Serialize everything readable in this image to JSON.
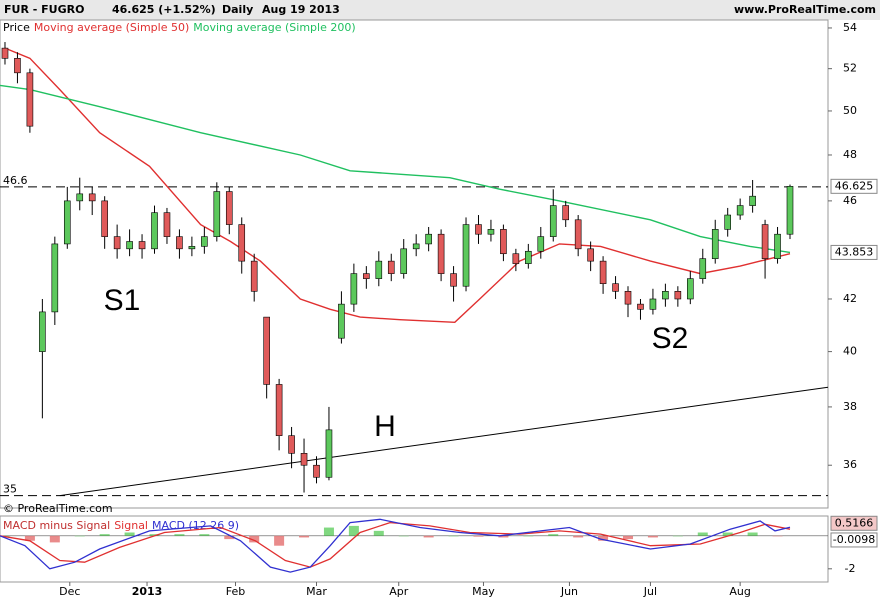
{
  "header": {
    "symbol": "FUR - FUGRO",
    "quote": "46.625 (+1.52%)",
    "period": "Daily",
    "date": "Aug 19 2013",
    "site": "www.ProRealTime.com"
  },
  "chart_data": [
    {
      "type": "candlestick",
      "legend_prefix": "Price",
      "copyright": "© ProRealTime.com",
      "up_color": "#5cc85c",
      "down_color": "#e05a5a",
      "log_scale": true,
      "xlim": [
        -0.4,
        66.05
      ],
      "ylim": [
        34.6,
        54.4
      ],
      "yticks": [
        36,
        38,
        40,
        42,
        46,
        48,
        50,
        52,
        54
      ],
      "xticks": [
        {
          "value": 5.2,
          "label": "Dec"
        },
        {
          "value": 11.4,
          "label": "2013"
        },
        {
          "value": 18.5,
          "label": "Feb"
        },
        {
          "value": 25.0,
          "label": "Mar"
        },
        {
          "value": 31.6,
          "label": "Apr"
        },
        {
          "value": 38.4,
          "label": "May"
        },
        {
          "value": 45.3,
          "label": "Jun"
        },
        {
          "value": 51.8,
          "label": "Jul"
        },
        {
          "value": 59.0,
          "label": "Aug"
        }
      ],
      "candles": [
        [
          53.0,
          53.3,
          52.2,
          52.5
        ],
        [
          52.5,
          52.8,
          51.3,
          51.8
        ],
        [
          51.8,
          52.0,
          49.0,
          49.3
        ],
        [
          40.0,
          42.0,
          37.6,
          41.5
        ],
        [
          41.5,
          44.5,
          41.0,
          44.2
        ],
        [
          44.2,
          46.6,
          44.0,
          46.0
        ],
        [
          46.0,
          47.0,
          45.6,
          46.3
        ],
        [
          46.3,
          46.6,
          45.4,
          46.0
        ],
        [
          46.0,
          46.2,
          44.0,
          44.5
        ],
        [
          44.5,
          45.0,
          43.6,
          44.0
        ],
        [
          44.0,
          44.8,
          43.7,
          44.3
        ],
        [
          44.3,
          44.6,
          43.6,
          44.0
        ],
        [
          44.0,
          45.8,
          43.8,
          45.5
        ],
        [
          45.5,
          45.7,
          44.2,
          44.5
        ],
        [
          44.5,
          44.8,
          43.6,
          44.0
        ],
        [
          44.0,
          44.5,
          43.7,
          44.1
        ],
        [
          44.1,
          44.9,
          43.8,
          44.5
        ],
        [
          44.5,
          46.8,
          44.3,
          46.4
        ],
        [
          46.4,
          46.6,
          44.6,
          45.0
        ],
        [
          45.0,
          45.3,
          43.0,
          43.5
        ],
        [
          43.5,
          43.8,
          41.9,
          42.3
        ],
        [
          41.3,
          41.3,
          38.3,
          38.8
        ],
        [
          38.8,
          39.0,
          36.5,
          37.0
        ],
        [
          37.0,
          37.3,
          35.9,
          36.4
        ],
        [
          36.4,
          36.9,
          35.1,
          36.0
        ],
        [
          36.0,
          36.3,
          35.4,
          35.6
        ],
        [
          35.6,
          38.0,
          35.5,
          37.2
        ],
        [
          40.5,
          42.3,
          40.3,
          41.8
        ],
        [
          41.8,
          43.4,
          41.5,
          43.0
        ],
        [
          43.0,
          43.3,
          42.4,
          42.8
        ],
        [
          42.8,
          43.9,
          42.5,
          43.5
        ],
        [
          43.5,
          43.8,
          42.7,
          43.0
        ],
        [
          43.0,
          44.4,
          42.8,
          44.0
        ],
        [
          44.0,
          44.6,
          43.7,
          44.2
        ],
        [
          44.2,
          44.9,
          43.9,
          44.6
        ],
        [
          44.6,
          44.8,
          42.7,
          43.0
        ],
        [
          43.0,
          43.3,
          41.9,
          42.5
        ],
        [
          42.5,
          45.3,
          42.3,
          45.0
        ],
        [
          45.0,
          45.4,
          44.2,
          44.6
        ],
        [
          44.6,
          45.2,
          44.3,
          44.8
        ],
        [
          44.8,
          45.0,
          43.5,
          43.8
        ],
        [
          43.8,
          44.0,
          43.1,
          43.4
        ],
        [
          43.4,
          44.2,
          43.2,
          43.9
        ],
        [
          43.9,
          44.9,
          43.6,
          44.5
        ],
        [
          44.5,
          46.5,
          44.3,
          45.8
        ],
        [
          45.8,
          46.0,
          44.9,
          45.2
        ],
        [
          45.2,
          45.4,
          43.7,
          44.0
        ],
        [
          44.0,
          44.3,
          43.1,
          43.5
        ],
        [
          43.5,
          43.7,
          42.2,
          42.6
        ],
        [
          42.6,
          42.9,
          42.0,
          42.3
        ],
        [
          42.3,
          42.5,
          41.3,
          41.8
        ],
        [
          41.8,
          42.0,
          41.2,
          41.6
        ],
        [
          41.6,
          42.4,
          41.4,
          42.0
        ],
        [
          42.0,
          42.6,
          41.7,
          42.3
        ],
        [
          42.3,
          42.5,
          41.7,
          42.0
        ],
        [
          42.0,
          43.1,
          41.8,
          42.8
        ],
        [
          42.8,
          44.0,
          42.6,
          43.6
        ],
        [
          43.6,
          45.2,
          43.4,
          44.8
        ],
        [
          44.8,
          45.7,
          44.5,
          45.4
        ],
        [
          45.4,
          46.1,
          45.2,
          45.8
        ],
        [
          45.8,
          46.9,
          45.5,
          46.2
        ],
        [
          45.0,
          45.2,
          42.8,
          43.6
        ],
        [
          43.6,
          44.9,
          43.4,
          44.6
        ],
        [
          44.6,
          46.7,
          44.4,
          46.625
        ]
      ],
      "series": [
        {
          "name": "Moving average (Simple 50)",
          "color": "#e03030",
          "x": [
            0,
            2,
            4.4,
            7.6,
            11.6,
            15.7,
            18.1,
            20.5,
            23.7,
            26.1,
            28.5,
            31.7,
            36.1,
            38.1,
            41.3,
            44.5,
            47.8,
            51.8,
            55.8,
            59.0,
            60.6,
            63
          ],
          "values": [
            53,
            52.5,
            51,
            49,
            47.5,
            45,
            44.3,
            43.5,
            42.0,
            41.6,
            41.3,
            41.2,
            41.1,
            42.0,
            43.5,
            44.2,
            44.1,
            43.5,
            43.0,
            43.3,
            43.5,
            43.8
          ]
        },
        {
          "name": "Moving average (Simple 200)",
          "color": "#20c060",
          "x": [
            -0.4,
            2,
            7.6,
            15.7,
            23.7,
            27.7,
            35.7,
            39.7,
            44.5,
            51.8,
            55.8,
            59.8,
            63
          ],
          "values": [
            51.2,
            51.0,
            50.2,
            49.0,
            48.0,
            47.3,
            47.0,
            46.5,
            46.0,
            45.2,
            44.5,
            44.1,
            43.853
          ]
        }
      ],
      "levels": [
        46.6,
        35
      ],
      "trendline": {
        "x": [
          4.4,
          66.05
        ],
        "values": [
          35,
          38.7
        ]
      },
      "annotations": [
        "S1",
        "H",
        "S2"
      ]
    },
    {
      "type": "macd",
      "title_parts": [
        "MACD minus Signal",
        "Signal",
        "MACD (12 26 9)"
      ],
      "xlim": [
        -0.4,
        66.05
      ],
      "ylim": [
        -2.8,
        1.2
      ],
      "yticks": [
        -2
      ],
      "histogram": {
        "color_up": "#4cc84c",
        "color_down": "#e05a5a",
        "x": [
          0,
          2,
          4,
          6,
          8,
          10,
          12,
          14,
          16,
          18,
          20,
          22,
          24,
          26,
          28,
          30,
          32,
          34,
          36,
          38,
          40,
          42,
          44,
          46,
          48,
          50,
          52,
          54,
          56,
          58,
          60,
          62
        ],
        "values": [
          0,
          -0.3,
          -0.4,
          0,
          0.1,
          0.2,
          0.1,
          0.1,
          0.1,
          -0.2,
          -0.4,
          -0.6,
          -0.1,
          0.5,
          0.6,
          0.3,
          0.0,
          -0.1,
          0,
          -0.05,
          -0.1,
          0,
          0.1,
          -0.1,
          -0.3,
          -0.2,
          -0.1,
          0,
          0.2,
          0.2,
          0.2,
          -0.0098
        ]
      },
      "series": [
        {
          "name": "Signal",
          "color": "#e03030",
          "x": [
            -0.4,
            2,
            4.4,
            6.4,
            9.2,
            12.8,
            17.3,
            20.1,
            22.5,
            24.5,
            26.1,
            28.5,
            30.9,
            34.1,
            37.3,
            41.3,
            44.5,
            47.8,
            51.8,
            55.8,
            59.0,
            61.0,
            63
          ],
          "values": [
            0,
            -0.3,
            -1.5,
            -1.6,
            -0.7,
            0.2,
            0.5,
            -0.3,
            -1.5,
            -1.9,
            -1.4,
            0.2,
            0.8,
            0.6,
            0.2,
            0.1,
            0.3,
            0.1,
            -0.6,
            -0.5,
            0.2,
            0.7,
            0.4
          ]
        },
        {
          "name": "MACD",
          "color": "#3030d0",
          "x": [
            -0.4,
            1.6,
            3.6,
            5.6,
            7.6,
            11.6,
            16.5,
            18.9,
            21.3,
            22.9,
            24.5,
            26.1,
            27.7,
            30.1,
            33.3,
            36.5,
            39.7,
            43.0,
            45.3,
            47.8,
            51.8,
            55.0,
            58.2,
            60.6,
            61.8,
            63
          ],
          "values": [
            0,
            -0.6,
            -2.0,
            -1.6,
            -0.8,
            0.3,
            0.6,
            -0.3,
            -1.9,
            -2.2,
            -1.9,
            -0.6,
            0.8,
            1.0,
            0.5,
            0.2,
            0.0,
            0.3,
            0.5,
            -0.2,
            -0.8,
            -0.5,
            0.4,
            0.9,
            0.3,
            0.5166
          ]
        }
      ]
    }
  ]
}
